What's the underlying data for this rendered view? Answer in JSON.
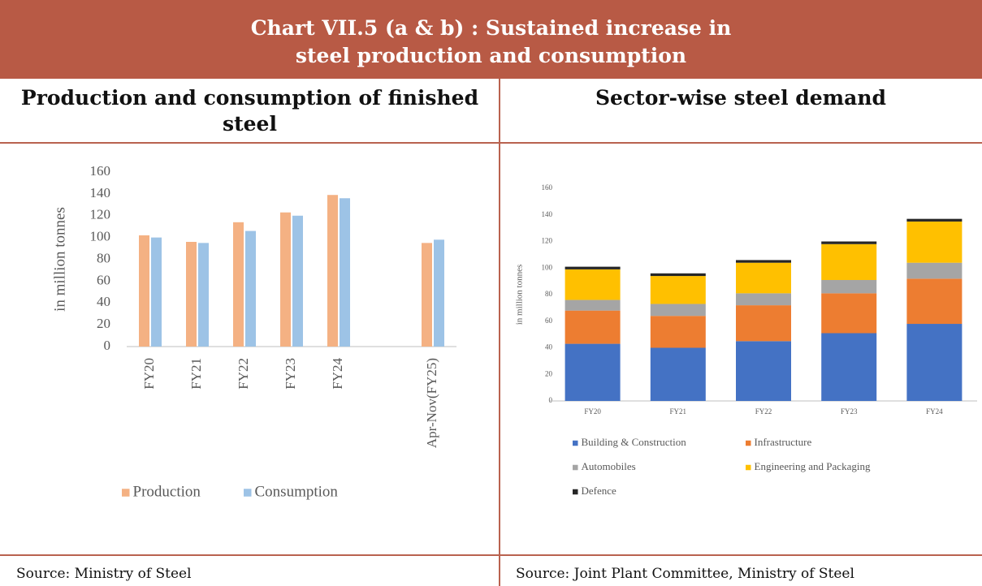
{
  "title": "Chart VII.5 (a & b) : Sustained increase in steel production and consumption",
  "chart_data": [
    {
      "type": "bar",
      "title": "Production and consumption of finished steel",
      "y_label": "in million tonnes",
      "categories": [
        "FY20",
        "FY21",
        "FY22",
        "FY23",
        "FY24",
        null,
        "Apr-Nov(FY25)"
      ],
      "series": [
        {
          "name": "Production",
          "color": "#f4b183",
          "values": [
            102,
            96,
            114,
            123,
            139,
            null,
            95
          ]
        },
        {
          "name": "Consumption",
          "color": "#9dc3e6",
          "values": [
            100,
            95,
            106,
            120,
            136,
            null,
            98
          ]
        }
      ],
      "ylim": [
        0,
        160
      ],
      "yticks": [
        0,
        20,
        40,
        60,
        80,
        100,
        120,
        140,
        160
      ],
      "grid": false,
      "legend": "bottom",
      "source": "Source: Ministry of Steel"
    },
    {
      "type": "stacked_bar",
      "title": "Sector-wise steel demand",
      "y_label": "in million tonnes",
      "categories": [
        "FY20",
        "FY21",
        "FY22",
        "FY23",
        "FY24"
      ],
      "series": [
        {
          "name": "Building & Construction",
          "color": "#4472c4",
          "values": [
            43,
            40,
            45,
            51,
            58
          ]
        },
        {
          "name": "Infrastructure",
          "color": "#ed7d31",
          "values": [
            25,
            24,
            27,
            30,
            34
          ]
        },
        {
          "name": "Automobiles",
          "color": "#a5a5a5",
          "values": [
            8,
            9,
            9,
            10,
            12
          ]
        },
        {
          "name": "Engineering and Packaging",
          "color": "#ffc000",
          "values": [
            23,
            21,
            23,
            27,
            31
          ]
        },
        {
          "name": "Defence",
          "color": "#262626",
          "values": [
            2,
            2,
            2,
            2,
            2
          ]
        }
      ],
      "ylim": [
        0,
        160
      ],
      "yticks": [
        0,
        20,
        40,
        60,
        80,
        100,
        120,
        140,
        160
      ],
      "grid": false,
      "legend": "bottom",
      "source": "Source: Joint Plant Committee, Ministry of Steel"
    }
  ]
}
